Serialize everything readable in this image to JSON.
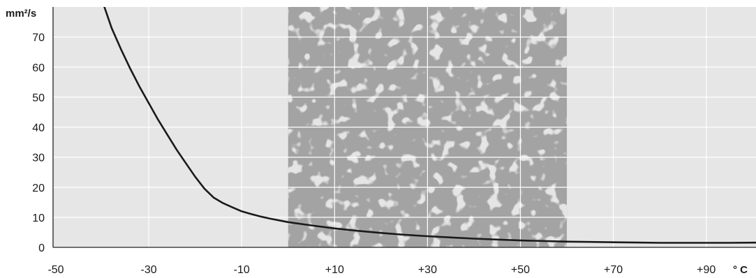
{
  "chart_data": {
    "type": "line",
    "title": "",
    "xlabel": "° C",
    "ylabel": "mm²/s",
    "xlim": [
      -50,
      102
    ],
    "ylim": [
      0,
      80
    ],
    "x_ticks": [
      -50,
      -30,
      -10,
      10,
      30,
      50,
      70,
      90
    ],
    "x_tick_labels": [
      "-50",
      "-30",
      "-10",
      "+10",
      "+30",
      "+50",
      "+70",
      "+90"
    ],
    "y_ticks": [
      0,
      10,
      20,
      30,
      40,
      50,
      60,
      70
    ],
    "y_tick_labels": [
      "0",
      "10",
      "20",
      "30",
      "40",
      "50",
      "60",
      "70"
    ],
    "grid": true,
    "highlight_band": {
      "x_range": [
        0,
        60
      ],
      "color": "#a3a3a3"
    },
    "colors": {
      "plot_background": "#e6e6e6",
      "grid": "#ffffff",
      "line": "#1a1a1a"
    },
    "series": [
      {
        "name": "",
        "x": [
          -40,
          -38,
          -36,
          -34,
          -32,
          -30,
          -28,
          -26,
          -24,
          -22,
          -20,
          -18,
          -16,
          -14,
          -12,
          -10,
          -8,
          -6,
          -4,
          -2,
          0,
          5,
          10,
          15,
          20,
          25,
          30,
          35,
          40,
          45,
          50,
          55,
          60,
          65,
          70,
          75,
          80,
          85,
          90,
          95,
          102
        ],
        "y": [
          82,
          73,
          66,
          59.5,
          53.5,
          48,
          42.5,
          37.5,
          32.5,
          28,
          23.5,
          19.5,
          16.5,
          14.7,
          13.3,
          12,
          11.1,
          10.3,
          9.6,
          9,
          8.4,
          7.3,
          6.3,
          5.5,
          4.8,
          4.2,
          3.7,
          3.3,
          2.9,
          2.6,
          2.3,
          2.1,
          1.9,
          1.8,
          1.7,
          1.6,
          1.5,
          1.5,
          1.5,
          1.5,
          1.6
        ]
      }
    ]
  }
}
